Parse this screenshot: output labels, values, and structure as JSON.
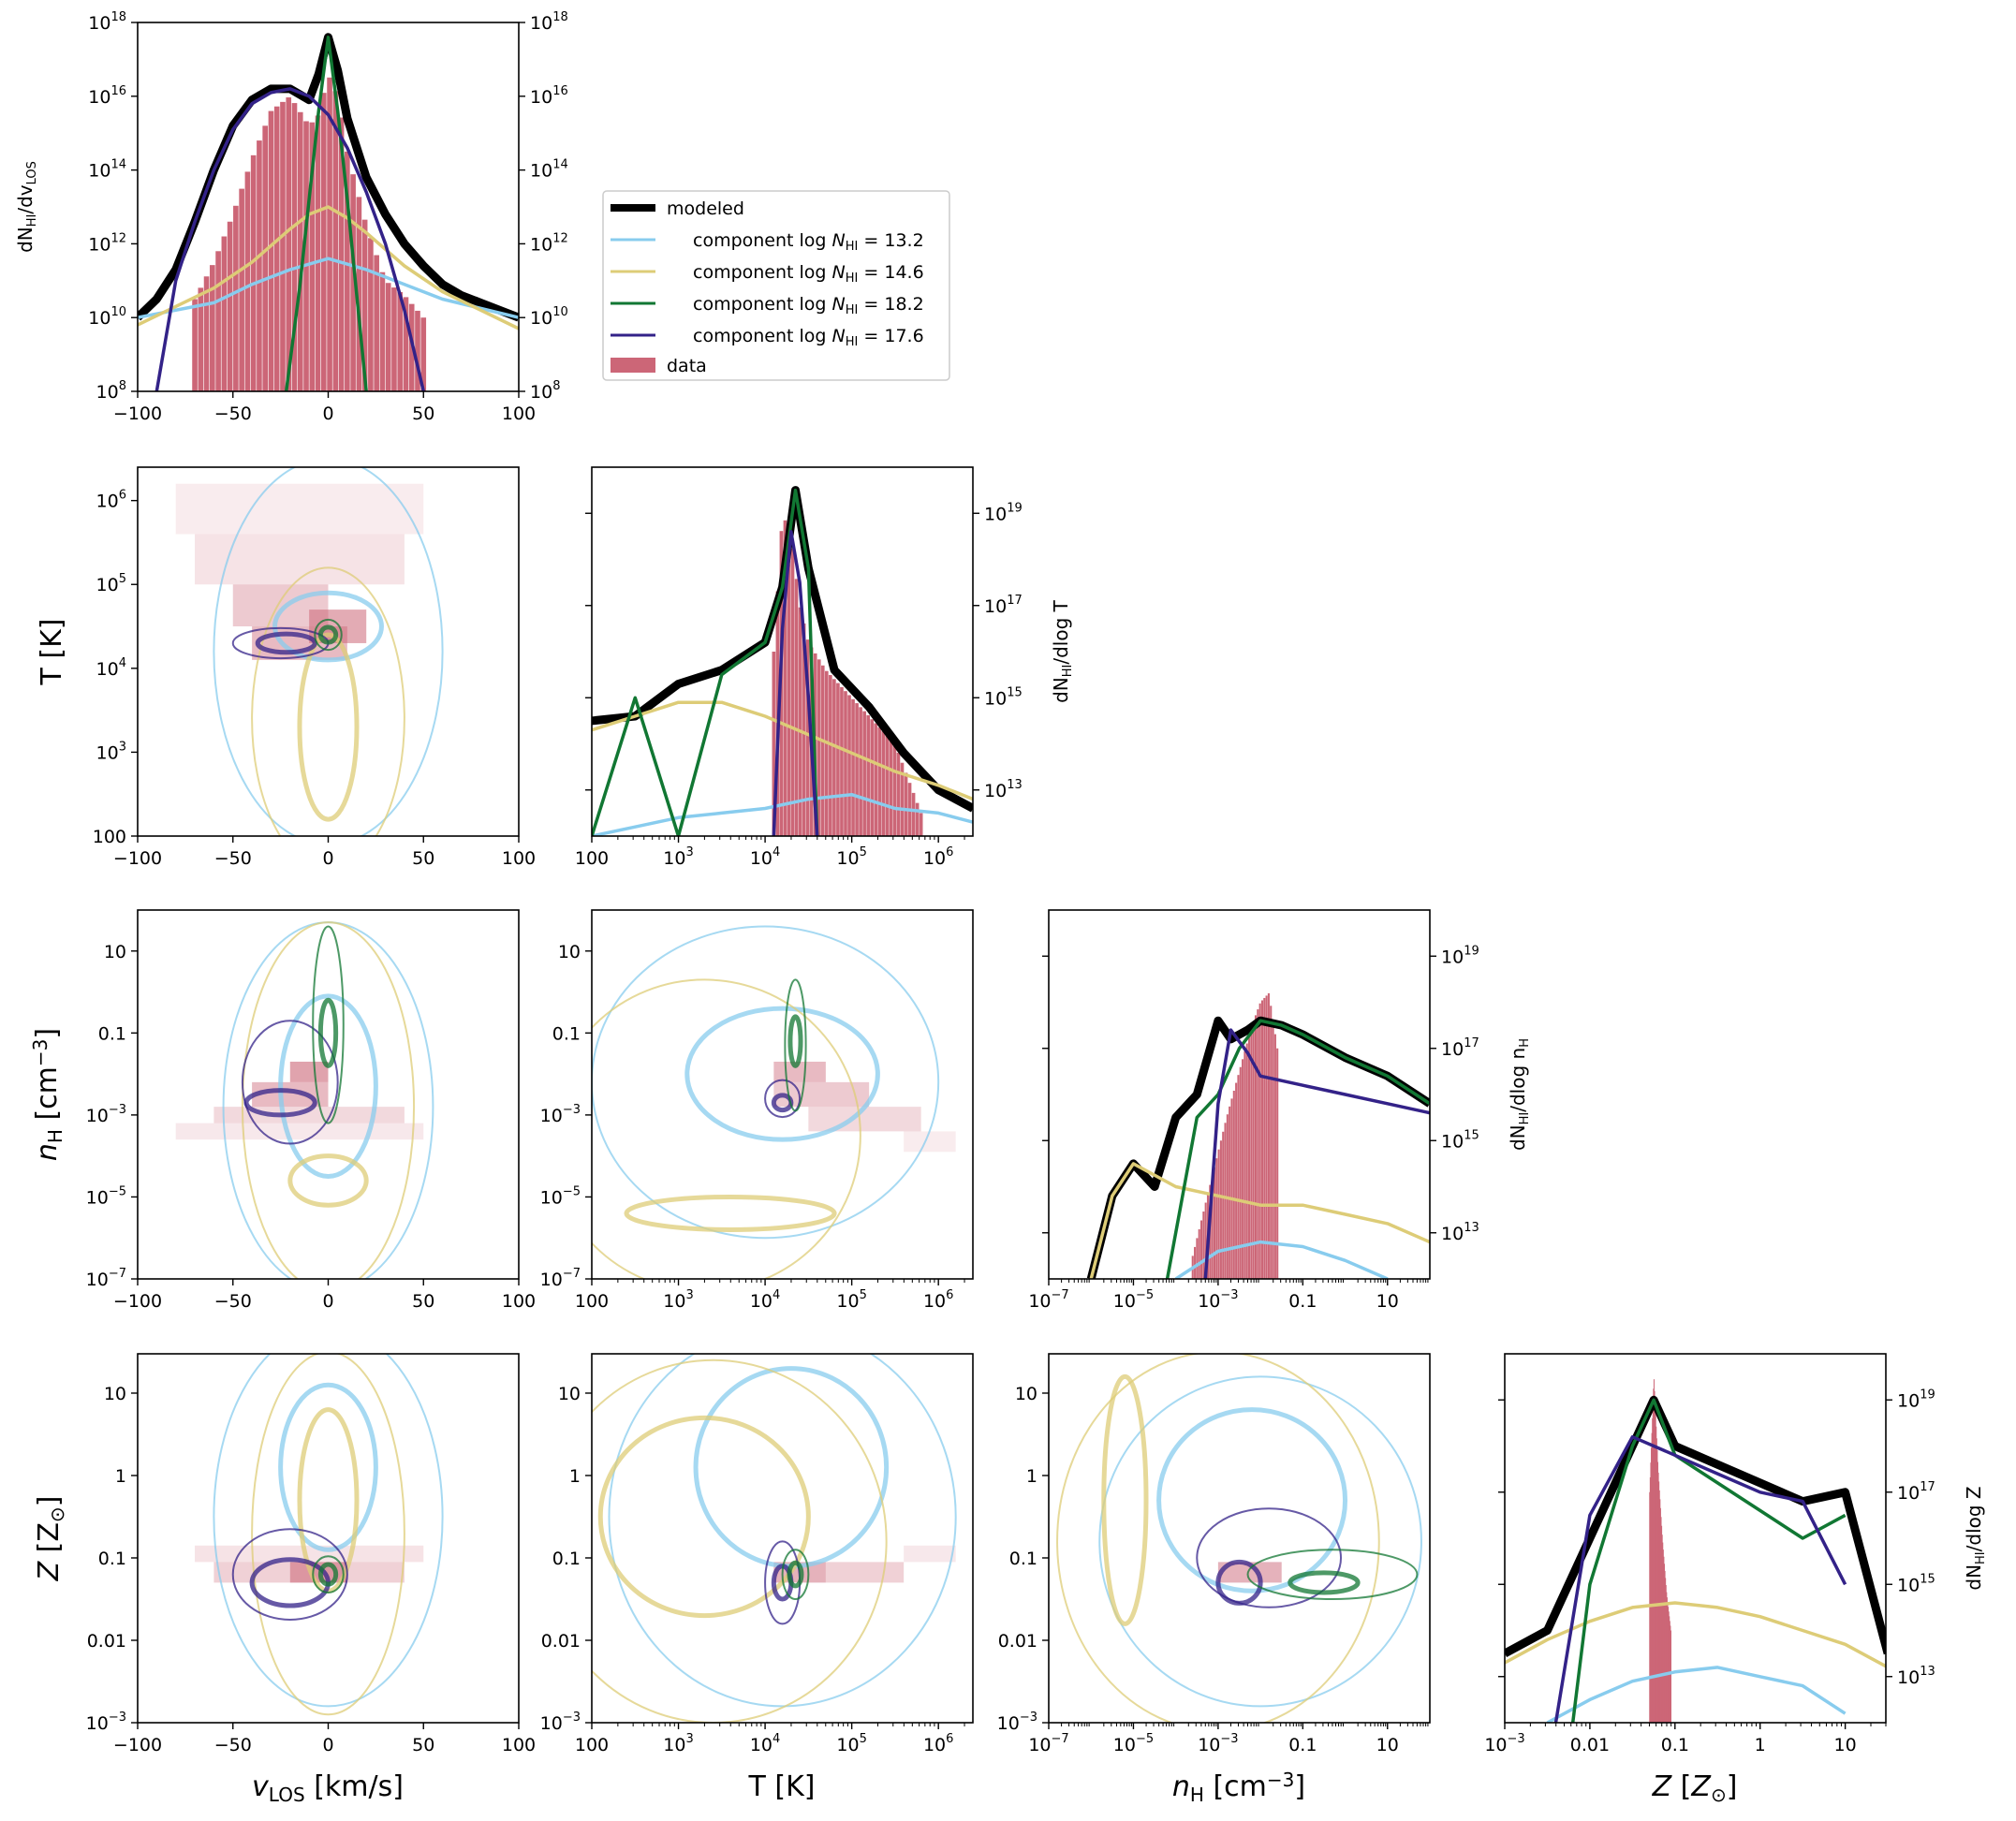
{
  "colors": {
    "modeled": "#000000",
    "c1": "#88ccee",
    "c2": "#ddcc77",
    "c3": "#117733",
    "c4": "#332288",
    "data": "#cc6677"
  },
  "legend": {
    "entries": [
      {
        "key": "modeled",
        "label": "modeled"
      },
      {
        "key": "c1",
        "label": "component log N_HI = 13.2"
      },
      {
        "key": "c2",
        "label": "component log N_HI = 14.6"
      },
      {
        "key": "c3",
        "label": "component log N_HI = 18.2"
      },
      {
        "key": "c4",
        "label": "component log N_HI = 17.6"
      },
      {
        "key": "data",
        "label": "data"
      }
    ]
  },
  "labels": {
    "v": "v_LOS [km/s]",
    "T": "T [K]",
    "nH": "n_H [cm^-3]",
    "Z": "Z [Z_sun]",
    "dv": "dN_HI/dv_LOS",
    "dT": "dN_HI/dlog T",
    "dn": "dN_HI/dlog n_H",
    "dZ": "dN_HI/dlog Z"
  },
  "chart_data": [
    {
      "type": "line",
      "panel": "v_LOS marginal",
      "xlim": [
        -100,
        100
      ],
      "ylim": [
        100000000.0,
        1e+18
      ],
      "xticks": [
        "-100",
        "-50",
        "0",
        "50",
        "100"
      ],
      "yticks": [
        "10^8",
        "10^10",
        "10^12",
        "10^14",
        "10^16",
        "10^18"
      ],
      "series": [
        {
          "name": "modeled",
          "x": [
            -100,
            -90,
            -80,
            -70,
            -60,
            -50,
            -40,
            -30,
            -20,
            -10,
            -5,
            0,
            5,
            10,
            20,
            30,
            40,
            50,
            60,
            70,
            80,
            90,
            100
          ],
          "y": [
            10.0,
            10.5,
            11.3,
            12.6,
            14.0,
            15.2,
            15.9,
            16.2,
            16.2,
            15.9,
            16.6,
            17.6,
            16.7,
            15.4,
            13.8,
            12.8,
            12.0,
            11.4,
            10.9,
            10.6,
            10.4,
            10.2,
            10.0
          ]
        },
        {
          "name": "component log N_HI = 13.2",
          "x": [
            -100,
            -60,
            -40,
            -20,
            0,
            20,
            40,
            60,
            100
          ],
          "y": [
            10.0,
            10.4,
            10.9,
            11.3,
            11.6,
            11.3,
            10.9,
            10.5,
            10.0
          ]
        },
        {
          "name": "component log N_HI = 14.6",
          "x": [
            -100,
            -60,
            -40,
            -20,
            -10,
            0,
            10,
            20,
            40,
            60,
            100
          ],
          "y": [
            9.8,
            10.8,
            11.5,
            12.4,
            12.8,
            13.0,
            12.7,
            12.3,
            11.4,
            10.7,
            9.7
          ]
        },
        {
          "name": "component log N_HI = 18.2",
          "x": [
            -22,
            -15,
            -10,
            -5,
            0,
            5,
            10,
            15,
            20
          ],
          "y": [
            8.0,
            10.8,
            13.2,
            15.6,
            17.6,
            15.6,
            13.2,
            10.6,
            8.0
          ]
        },
        {
          "name": "component log N_HI = 17.6",
          "x": [
            -90,
            -80,
            -70,
            -60,
            -50,
            -40,
            -30,
            -20,
            -10,
            0,
            10,
            20,
            30,
            40,
            50
          ],
          "y": [
            8.0,
            11.0,
            12.6,
            14.0,
            15.1,
            15.8,
            16.1,
            16.2,
            16.0,
            15.5,
            14.6,
            13.4,
            12.0,
            10.2,
            8.0
          ]
        },
        {
          "name": "data",
          "x": [
            -70,
            -60,
            -50,
            -40,
            -30,
            -20,
            -10,
            -5,
            0,
            5,
            10,
            20,
            30,
            40,
            50
          ],
          "y": [
            10.5,
            11.5,
            12.8,
            14.3,
            15.6,
            16.0,
            15.2,
            15.5,
            16.6,
            16.0,
            14.5,
            12.5,
            11.0,
            10.6,
            10.0
          ]
        }
      ]
    },
    {
      "type": "line",
      "panel": "T marginal",
      "xlim": [
        100,
        3000000
      ],
      "xscale": "log",
      "ylim": [
        1000000000000.0,
        1e+20
      ],
      "xticks": [
        "100",
        "10^3",
        "10^4",
        "10^5",
        "10^6"
      ],
      "yticks": [
        "10^13",
        "10^15",
        "10^17",
        "10^19"
      ],
      "series": [
        {
          "name": "modeled",
          "x": [
            2.0,
            2.5,
            3.0,
            3.5,
            4.0,
            4.2,
            4.35,
            4.5,
            4.8,
            5.2,
            5.6,
            6.0,
            6.4
          ],
          "y": [
            14.5,
            14.6,
            15.3,
            15.6,
            16.2,
            17.4,
            19.5,
            17.8,
            15.6,
            14.8,
            13.8,
            13.0,
            12.6
          ]
        },
        {
          "name": "component log N_HI = 13.2",
          "x": [
            2.0,
            2.5,
            3.0,
            3.5,
            4.0,
            4.5,
            5.0,
            5.5,
            6.0,
            6.4
          ],
          "y": [
            12.0,
            12.2,
            12.4,
            12.5,
            12.6,
            12.8,
            12.9,
            12.6,
            12.5,
            12.3
          ]
        },
        {
          "name": "component log N_HI = 14.6",
          "x": [
            2.0,
            2.5,
            3.0,
            3.5,
            4.0,
            4.5,
            5.0,
            5.5,
            6.0,
            6.4
          ],
          "y": [
            14.3,
            14.6,
            14.9,
            14.9,
            14.6,
            14.2,
            13.8,
            13.4,
            13.1,
            12.8
          ]
        },
        {
          "name": "component log N_HI = 18.2",
          "x": [
            2.0,
            2.5,
            3.0,
            3.5,
            4.0,
            4.2,
            4.35,
            4.5,
            4.6
          ],
          "y": [
            12.0,
            15.0,
            12.0,
            15.5,
            16.2,
            17.4,
            19.5,
            17.8,
            12.0
          ]
        },
        {
          "name": "component log N_HI = 17.6",
          "x": [
            4.1,
            4.2,
            4.3,
            4.4,
            4.5,
            4.6
          ],
          "y": [
            12.0,
            16.5,
            18.6,
            17.5,
            15.0,
            12.0
          ]
        },
        {
          "name": "data",
          "x": [
            4.1,
            4.2,
            4.3,
            4.4,
            4.5,
            4.7,
            5.0,
            5.5,
            5.8
          ],
          "y": [
            16.0,
            19.0,
            18.5,
            17.0,
            16.2,
            15.6,
            15.0,
            14.0,
            12.5
          ]
        }
      ]
    },
    {
      "type": "line",
      "panel": "n_H marginal",
      "xlim": [
        1e-07,
        100
      ],
      "xscale": "log",
      "ylim": [
        1000000000000.0,
        1e+20
      ],
      "xticks": [
        "10^-7",
        "10^-5",
        "10^-3",
        "0.1",
        "10"
      ],
      "yticks": [
        "10^13",
        "10^15",
        "10^17",
        "10^19"
      ],
      "series": [
        {
          "name": "modeled",
          "x": [
            -6.0,
            -5.5,
            -5.0,
            -4.5,
            -4.0,
            -3.5,
            -3.0,
            -2.7,
            -2.3,
            -2.0,
            -1.5,
            -1.0,
            0,
            1,
            2
          ],
          "y": [
            12.0,
            13.8,
            14.5,
            14.0,
            15.5,
            16.0,
            17.6,
            17.2,
            17.4,
            17.6,
            17.5,
            17.3,
            16.8,
            16.4,
            15.8
          ]
        },
        {
          "name": "component log N_HI = 13.2",
          "x": [
            -4.0,
            -3.0,
            -2.0,
            -1.0,
            0,
            1.0
          ],
          "y": [
            12.0,
            12.6,
            12.8,
            12.7,
            12.4,
            12.0
          ]
        },
        {
          "name": "component log N_HI = 14.6",
          "x": [
            -6.0,
            -5.5,
            -5.0,
            -4.0,
            -3.0,
            -2.0,
            -1.0,
            0,
            1,
            2
          ],
          "y": [
            12.0,
            13.8,
            14.5,
            14.0,
            13.8,
            13.6,
            13.6,
            13.4,
            13.2,
            12.8
          ]
        },
        {
          "name": "component log N_HI = 18.2",
          "x": [
            -4.2,
            -3.5,
            -3.0,
            -2.5,
            -2.0,
            -1.5,
            -1.0,
            0,
            1,
            2
          ],
          "y": [
            12.0,
            15.5,
            16.0,
            17.0,
            17.6,
            17.5,
            17.3,
            16.8,
            16.4,
            15.8
          ]
        },
        {
          "name": "component log N_HI = 17.6",
          "x": [
            -3.3,
            -3.0,
            -2.7,
            -2.3,
            -2.0,
            -1.0,
            0,
            1,
            2
          ],
          "y": [
            12.0,
            15.8,
            17.4,
            16.9,
            16.4,
            16.2,
            16.0,
            15.8,
            15.6
          ]
        },
        {
          "name": "data",
          "x": [
            -3.6,
            -3.2,
            -2.8,
            -2.5,
            -2.2,
            -2.0,
            -1.8,
            -1.6
          ],
          "y": [
            12.5,
            14.0,
            15.5,
            16.5,
            17.5,
            18.0,
            18.2,
            17.0
          ]
        }
      ]
    },
    {
      "type": "line",
      "panel": "Z marginal",
      "xlim": [
        0.001,
        30
      ],
      "xscale": "log",
      "ylim": [
        1000000000000.0,
        1e+20
      ],
      "xticks": [
        "10^-3",
        "0.01",
        "0.1",
        "1",
        "10"
      ],
      "yticks": [
        "10^13",
        "10^15",
        "10^17",
        "10^19"
      ],
      "series": [
        {
          "name": "modeled",
          "x": [
            -3.0,
            -2.5,
            -2.0,
            -1.5,
            -1.25,
            -1.0,
            -0.5,
            0,
            0.5,
            1.0,
            1.5
          ],
          "y": [
            13.5,
            14.0,
            16.0,
            18.0,
            19.0,
            18.0,
            17.6,
            17.2,
            16.8,
            17.0,
            13.5
          ]
        },
        {
          "name": "component log N_HI = 13.2",
          "x": [
            -2.5,
            -2.0,
            -1.5,
            -1.0,
            -0.5,
            0,
            0.5,
            1.0
          ],
          "y": [
            12.0,
            12.5,
            12.9,
            13.1,
            13.2,
            13.0,
            12.8,
            12.2
          ]
        },
        {
          "name": "component log N_HI = 14.6",
          "x": [
            -3.0,
            -2.5,
            -2.0,
            -1.5,
            -1.0,
            -0.5,
            0,
            0.5,
            1.0,
            1.5
          ],
          "y": [
            13.3,
            13.8,
            14.2,
            14.5,
            14.6,
            14.5,
            14.3,
            14.0,
            13.7,
            13.2
          ]
        },
        {
          "name": "component log N_HI = 18.2",
          "x": [
            -2.2,
            -2.0,
            -1.5,
            -1.25,
            -1.0,
            -0.5,
            0,
            0.5,
            1.0
          ],
          "y": [
            12.0,
            15.0,
            18.0,
            19.0,
            17.8,
            17.2,
            16.6,
            16.0,
            16.5
          ]
        },
        {
          "name": "component log N_HI = 17.6",
          "x": [
            -2.4,
            -2.0,
            -1.5,
            -1.0,
            -0.5,
            0,
            0.5,
            1.0
          ],
          "y": [
            12.0,
            16.5,
            18.2,
            17.8,
            17.4,
            17.0,
            16.8,
            15.0
          ]
        },
        {
          "name": "data",
          "x": [
            -1.3,
            -1.25,
            -1.2,
            -1.15,
            -1.1,
            -1.05
          ],
          "y": [
            17.0,
            19.5,
            17.5,
            16.0,
            14.8,
            14.0
          ]
        }
      ]
    },
    {
      "type": "heatmap",
      "panel": "2D: T vs v_LOS",
      "xlim": [
        -100,
        100
      ],
      "ylim": [
        100,
        2500000
      ],
      "xticks": [
        "-100",
        "-50",
        "0",
        "50",
        "100"
      ],
      "yticks": [
        "100",
        "10^3",
        "10^4",
        "10^5",
        "10^6"
      ]
    },
    {
      "type": "heatmap",
      "panel": "2D: n_H vs v_LOS",
      "xlim": [
        -100,
        100
      ],
      "ylim": [
        1e-07,
        100
      ],
      "xticks": [
        "-100",
        "-50",
        "0",
        "50",
        "100"
      ],
      "yticks": [
        "10^-7",
        "10^-5",
        "10^-3",
        "0.1",
        "10"
      ]
    },
    {
      "type": "heatmap",
      "panel": "2D: n_H vs T",
      "xlim": [
        100,
        2500000
      ],
      "ylim": [
        1e-07,
        100
      ],
      "xticks": [
        "100",
        "10^3",
        "10^4",
        "10^5",
        "10^6"
      ],
      "yticks": [
        "10^-7",
        "10^-5",
        "10^-3",
        "0.1",
        "10"
      ]
    },
    {
      "type": "heatmap",
      "panel": "2D: Z vs v_LOS",
      "xlim": [
        -100,
        100
      ],
      "ylim": [
        0.001,
        30
      ],
      "xticks": [
        "-100",
        "-50",
        "0",
        "50",
        "100"
      ],
      "yticks": [
        "10^-3",
        "0.01",
        "0.1",
        "1",
        "10"
      ]
    },
    {
      "type": "heatmap",
      "panel": "2D: Z vs T",
      "xlim": [
        100,
        2500000
      ],
      "ylim": [
        0.001,
        30
      ],
      "xticks": [
        "100",
        "10^3",
        "10^4",
        "10^5",
        "10^6"
      ],
      "yticks": [
        "10^-3",
        "0.01",
        "0.1",
        "1",
        "10"
      ]
    },
    {
      "type": "heatmap",
      "panel": "2D: Z vs n_H",
      "xlim": [
        1e-07,
        100
      ],
      "ylim": [
        0.001,
        30
      ],
      "xticks": [
        "10^-7",
        "10^-5",
        "10^-3",
        "0.1",
        "10"
      ],
      "yticks": [
        "10^-3",
        "0.01",
        "0.1",
        "1",
        "10"
      ]
    }
  ]
}
